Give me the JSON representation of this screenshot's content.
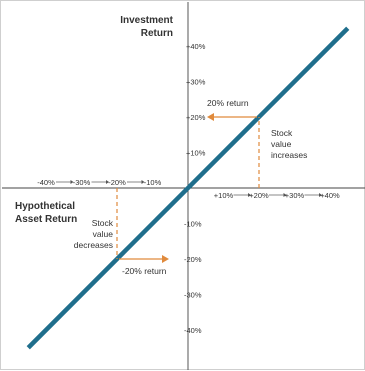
{
  "chart_data": {
    "type": "line",
    "y_axis_title_lines": [
      "Investment",
      "Return"
    ],
    "x_axis_title_lines": [
      "Hypothetical",
      "Asset Return"
    ],
    "xlim": [
      -45,
      45
    ],
    "ylim": [
      -45,
      45
    ],
    "series": [
      {
        "values": [
          [
            -45,
            -45
          ],
          [
            45,
            45
          ]
        ]
      }
    ],
    "x_ticks": [
      {
        "value": -40,
        "label": "-40%"
      },
      {
        "value": -30,
        "label": "-30%"
      },
      {
        "value": -20,
        "label": "-20%"
      },
      {
        "value": -10,
        "label": "-10%"
      },
      {
        "value": 10,
        "label": "+10%"
      },
      {
        "value": 20,
        "label": "+20%"
      },
      {
        "value": 30,
        "label": "+30%"
      },
      {
        "value": 40,
        "label": "+40%"
      }
    ],
    "y_ticks": [
      {
        "value": 40,
        "label": "+40%"
      },
      {
        "value": 30,
        "label": "+30%"
      },
      {
        "value": 20,
        "label": "+20%"
      },
      {
        "value": 10,
        "label": "+10%"
      },
      {
        "value": -10,
        "label": "-10%"
      },
      {
        "value": -20,
        "label": "-20%"
      },
      {
        "value": -30,
        "label": "-30%"
      },
      {
        "value": -40,
        "label": "-40%"
      }
    ],
    "annotations": [
      {
        "point": [
          20,
          20
        ],
        "return_label": "20% return",
        "description_lines": [
          "Stock",
          "value",
          "increases"
        ]
      },
      {
        "point": [
          -20,
          -20
        ],
        "return_label": "-20% return",
        "description_lines": [
          "Stock",
          "value",
          "decreases"
        ]
      }
    ],
    "colors": {
      "line": "#1f6e8c",
      "annotation": "#e08a3c",
      "axis": "#444444"
    }
  }
}
